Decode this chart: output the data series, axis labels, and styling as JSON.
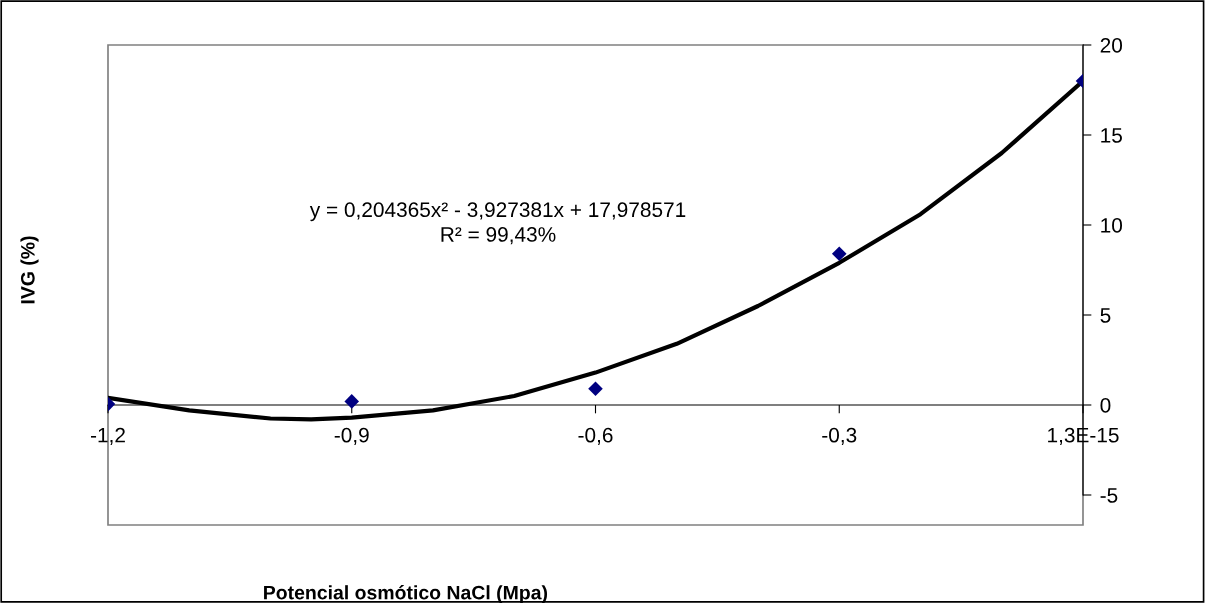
{
  "chart_data": {
    "type": "scatter",
    "xlabel": "Potencial osmótico NaCl (Mpa)",
    "ylabel": "IVG (%)",
    "xlim": [
      -1.2,
      1.3e-15
    ],
    "xticks": [
      {
        "value": -1.2,
        "label": "-1,2"
      },
      {
        "value": -0.9,
        "label": "-0,9"
      },
      {
        "value": -0.6,
        "label": "-0,6"
      },
      {
        "value": -0.3,
        "label": "-0,3"
      },
      {
        "value": 1.3e-15,
        "label": "1,3E-15"
      }
    ],
    "ylim": [
      -5,
      20
    ],
    "yticks": [
      -5,
      0,
      5,
      10,
      15,
      20
    ],
    "grid": false,
    "legend": false,
    "annotations": [
      "y = 0,204365x² - 3,927381x + 17,978571",
      "R² = 99,43%"
    ],
    "series": [
      {
        "color": "#000080",
        "marker": "diamond",
        "x": [
          -1.2,
          -0.9,
          -0.6,
          -0.3,
          0
        ],
        "values": [
          0.05,
          0.2,
          0.9,
          8.4,
          18
        ]
      },
      {
        "type": "line",
        "color": "#000000",
        "marker": "none",
        "line_style": "solid",
        "x": [
          -1.2,
          -1.1,
          -1.0,
          -0.95,
          -0.9,
          -0.8,
          -0.7,
          -0.6,
          -0.5,
          -0.4,
          -0.3,
          -0.2,
          -0.1,
          0
        ],
        "values": [
          0.4,
          -0.3,
          -0.75,
          -0.8,
          -0.7,
          -0.3,
          0.5,
          1.8,
          3.4,
          5.5,
          7.9,
          10.6,
          14.0,
          18.0
        ]
      }
    ]
  }
}
